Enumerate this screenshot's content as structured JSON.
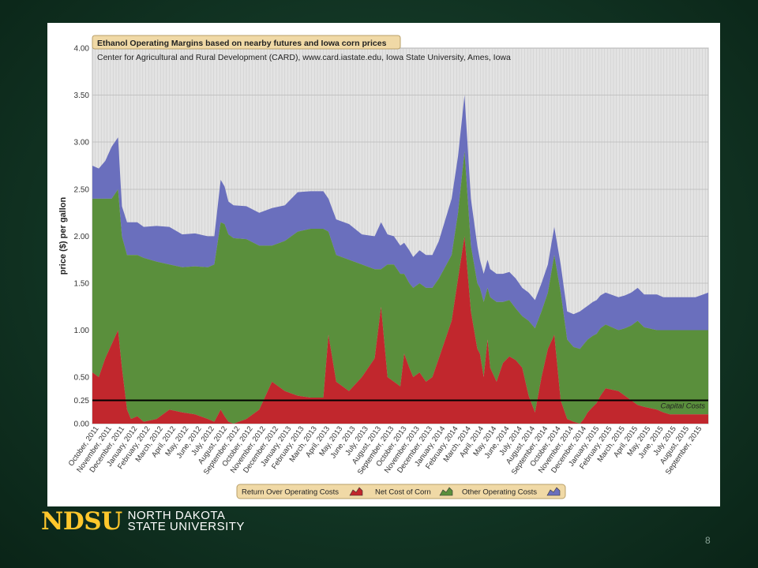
{
  "slide": {
    "page_number": "8"
  },
  "logo": {
    "mark": "NDSU",
    "line1": "NORTH DAKOTA",
    "line2": "STATE UNIVERSITY"
  },
  "colors": {
    "slide_background": "#123524",
    "chart_background": "#e3e3e3",
    "return_over_operating_costs": "#c1272d",
    "net_cost_of_corn": "#5a8f3c",
    "other_operating_costs": "#6a6fbd",
    "capital_costs_line": "#000000",
    "title_tab": "#f0d9a6"
  },
  "chart_data": {
    "type": "area",
    "stacked": true,
    "title": "Ethanol Operating Margins based on nearby futures and Iowa corn prices",
    "subtitle": "Center for Agricultural and Rural Development (CARD), www.card.iastate.edu, Iowa State University, Ames, Iowa",
    "xlabel": "",
    "ylabel": "price ($) per gallon",
    "ylim": [
      0,
      4
    ],
    "yticks": [
      "0.00",
      "0.25",
      "0.50",
      "1.00",
      "1.50",
      "2.00",
      "2.50",
      "3.00",
      "3.50",
      "4.00"
    ],
    "x_labels": [
      "October, 2011",
      "November, 2011",
      "December, 2011",
      "January, 2012",
      "February, 2012",
      "March, 2012",
      "April, 2012",
      "May, 2012",
      "June, 2012",
      "July, 2012",
      "August, 2012",
      "September, 2012",
      "October, 2012",
      "November, 2012",
      "December, 2012",
      "January, 2013",
      "February, 2013",
      "March, 2013",
      "April, 2013",
      "May, 2013",
      "June, 2013",
      "July, 2013",
      "August, 2013",
      "September, 2013",
      "October, 2013",
      "November, 2013",
      "December, 2013",
      "January, 2014",
      "February, 2014",
      "March, 2014",
      "April, 2014",
      "May, 2014",
      "June, 2014",
      "July, 2014",
      "August, 2014",
      "September, 2014",
      "October, 2014",
      "November, 2014",
      "December, 2014",
      "January, 2015",
      "February, 2015",
      "March, 2015",
      "April, 2015",
      "May, 2015",
      "June, 2015",
      "July, 2015",
      "August, 2015",
      "September, 2015"
    ],
    "x_month_index": [
      0,
      0.5,
      1,
      1.5,
      2,
      2.3,
      2.7,
      3,
      3.5,
      4,
      5,
      6,
      7,
      8,
      9,
      9.5,
      10,
      10.3,
      10.6,
      11,
      12,
      13,
      14,
      15,
      16,
      17,
      18,
      18.4,
      19,
      20,
      21,
      22,
      22.5,
      23,
      23.5,
      24,
      24.3,
      24.7,
      25,
      25.5,
      26,
      26.5,
      27,
      28,
      28.5,
      29,
      29.5,
      30,
      30.2,
      30.5,
      30.8,
      31,
      31.5,
      32,
      32.5,
      33,
      33.5,
      34,
      34.5,
      35,
      35.5,
      36,
      36.5,
      37,
      37.5,
      38,
      38.3,
      38.6,
      39,
      39.3,
      39.6,
      40,
      41,
      41.5,
      42,
      42.5,
      43,
      44,
      44.5,
      45,
      45.5,
      46,
      47,
      48
    ],
    "capital_costs": {
      "label": "Capital Costs",
      "value": 0.25
    },
    "series": [
      {
        "name": "Return Over Operating Costs",
        "values": [
          0.55,
          0.5,
          0.7,
          0.85,
          1.0,
          0.6,
          0.15,
          0.05,
          0.08,
          0.02,
          0.05,
          0.15,
          0.12,
          0.1,
          0.05,
          0.02,
          0.15,
          0.08,
          0.02,
          0.0,
          0.05,
          0.15,
          0.45,
          0.35,
          0.3,
          0.28,
          0.28,
          0.95,
          0.45,
          0.35,
          0.5,
          0.7,
          1.25,
          0.5,
          0.45,
          0.4,
          0.75,
          0.6,
          0.5,
          0.55,
          0.45,
          0.5,
          0.7,
          1.1,
          1.55,
          2.0,
          1.2,
          0.8,
          0.75,
          0.5,
          0.9,
          0.6,
          0.45,
          0.65,
          0.72,
          0.68,
          0.6,
          0.3,
          0.12,
          0.5,
          0.8,
          0.95,
          0.25,
          0.05,
          0.02,
          0.0,
          0.05,
          0.12,
          0.18,
          0.22,
          0.3,
          0.38,
          0.35,
          0.3,
          0.25,
          0.2,
          0.18,
          0.15,
          0.12,
          0.1,
          0.1,
          0.1,
          0.1,
          0.1
        ]
      },
      {
        "name": "Net Cost of Corn",
        "values": [
          1.85,
          1.9,
          1.7,
          1.55,
          1.5,
          1.4,
          1.65,
          1.75,
          1.72,
          1.75,
          1.68,
          1.55,
          1.55,
          1.58,
          1.62,
          1.68,
          2.0,
          2.05,
          2.0,
          1.98,
          1.92,
          1.75,
          1.45,
          1.6,
          1.75,
          1.8,
          1.8,
          1.1,
          1.35,
          1.4,
          1.2,
          0.95,
          0.4,
          1.2,
          1.25,
          1.2,
          0.85,
          0.9,
          0.95,
          0.95,
          1.0,
          0.95,
          0.85,
          0.7,
          0.7,
          0.9,
          0.7,
          0.7,
          0.7,
          0.8,
          0.55,
          0.75,
          0.85,
          0.65,
          0.6,
          0.55,
          0.55,
          0.8,
          0.9,
          0.7,
          0.6,
          0.85,
          1.15,
          0.85,
          0.8,
          0.8,
          0.8,
          0.78,
          0.76,
          0.74,
          0.72,
          0.68,
          0.65,
          0.72,
          0.8,
          0.9,
          0.85,
          0.85,
          0.88,
          0.9,
          0.9,
          0.9,
          0.9,
          0.9
        ]
      },
      {
        "name": "Other Operating Costs",
        "values": [
          0.35,
          0.32,
          0.4,
          0.55,
          0.55,
          0.32,
          0.35,
          0.35,
          0.35,
          0.33,
          0.38,
          0.4,
          0.35,
          0.35,
          0.33,
          0.3,
          0.45,
          0.4,
          0.35,
          0.35,
          0.35,
          0.35,
          0.4,
          0.38,
          0.42,
          0.4,
          0.4,
          0.35,
          0.38,
          0.38,
          0.32,
          0.35,
          0.5,
          0.32,
          0.3,
          0.3,
          0.33,
          0.35,
          0.33,
          0.35,
          0.35,
          0.35,
          0.4,
          0.6,
          0.6,
          0.6,
          0.5,
          0.4,
          0.3,
          0.3,
          0.3,
          0.3,
          0.3,
          0.3,
          0.3,
          0.32,
          0.3,
          0.3,
          0.3,
          0.3,
          0.3,
          0.3,
          0.3,
          0.3,
          0.35,
          0.4,
          0.38,
          0.36,
          0.36,
          0.36,
          0.35,
          0.34,
          0.35,
          0.35,
          0.35,
          0.35,
          0.35,
          0.38,
          0.35,
          0.35,
          0.35,
          0.35,
          0.35,
          0.4
        ]
      }
    ],
    "legend": {
      "placement": "bottom-center",
      "entries": [
        "Return Over Operating Costs",
        "Net Cost of Corn",
        "Other Operating Costs"
      ]
    },
    "grid": true
  }
}
